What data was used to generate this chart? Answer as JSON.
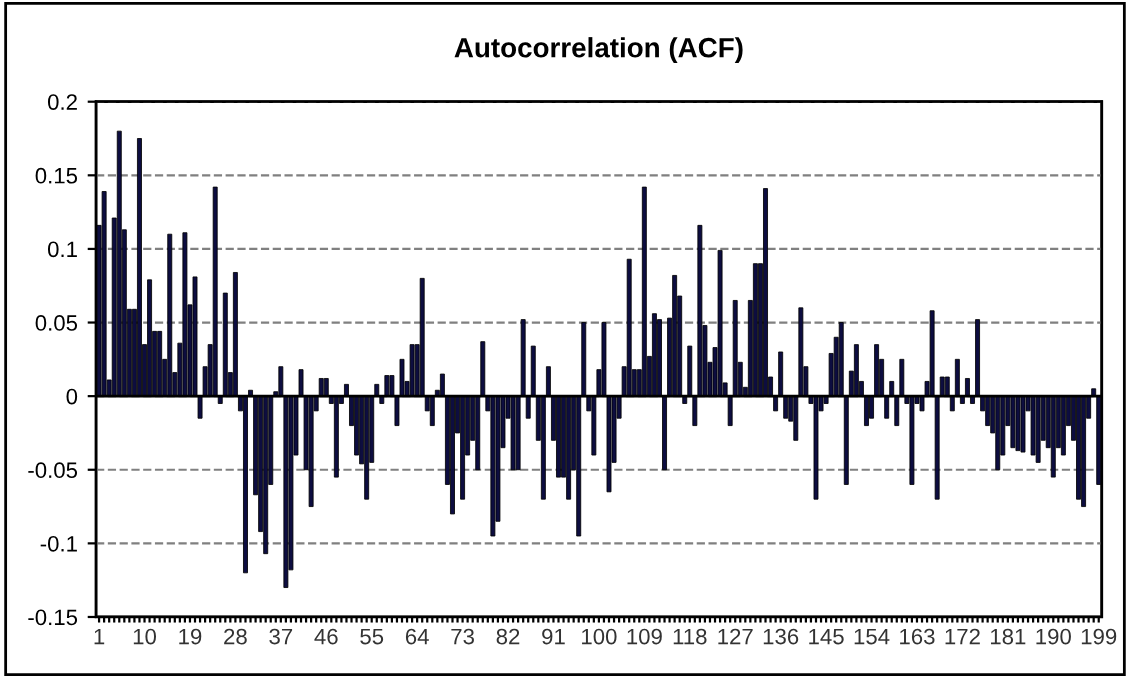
{
  "chart_data": {
    "type": "bar",
    "title": "Autocorrelation (ACF)",
    "categories": [
      "1",
      null,
      null,
      null,
      null,
      null,
      null,
      null,
      null,
      "10",
      null,
      null,
      null,
      null,
      null,
      null,
      null,
      null,
      "19",
      null,
      null,
      null,
      null,
      null,
      null,
      null,
      null,
      "28",
      null,
      null,
      null,
      null,
      null,
      null,
      null,
      null,
      "37",
      null,
      null,
      null,
      null,
      null,
      null,
      null,
      null,
      "46",
      null,
      null,
      null,
      null,
      null,
      null,
      null,
      null,
      "55",
      null,
      null,
      null,
      null,
      null,
      null,
      null,
      null,
      "64",
      null,
      null,
      null,
      null,
      null,
      null,
      null,
      null,
      "73",
      null,
      null,
      null,
      null,
      null,
      null,
      null,
      null,
      "82",
      null,
      null,
      null,
      null,
      null,
      null,
      null,
      null,
      "91",
      null,
      null,
      null,
      null,
      null,
      null,
      null,
      null,
      "100",
      null,
      null,
      null,
      null,
      null,
      null,
      null,
      null,
      "109",
      null,
      null,
      null,
      null,
      null,
      null,
      null,
      null,
      "118",
      null,
      null,
      null,
      null,
      null,
      null,
      null,
      null,
      "127",
      null,
      null,
      null,
      null,
      null,
      null,
      null,
      null,
      "136",
      null,
      null,
      null,
      null,
      null,
      null,
      null,
      null,
      "145",
      null,
      null,
      null,
      null,
      null,
      null,
      null,
      null,
      "154",
      null,
      null,
      null,
      null,
      null,
      null,
      null,
      null,
      "163",
      null,
      null,
      null,
      null,
      null,
      null,
      null,
      null,
      "172",
      null,
      null,
      null,
      null,
      null,
      null,
      null,
      null,
      "181",
      null,
      null,
      null,
      null,
      null,
      null,
      null,
      null,
      "190",
      null,
      null,
      null,
      null,
      null,
      null,
      null,
      null,
      "199"
    ],
    "values": [
      0.116,
      0.139,
      0.011,
      0.121,
      0.18,
      0.113,
      0.059,
      0.059,
      0.175,
      0.035,
      0.079,
      0.044,
      0.044,
      0.025,
      0.11,
      0.016,
      0.036,
      0.111,
      0.062,
      0.081,
      -0.015,
      0.02,
      0.035,
      0.142,
      -0.005,
      0.07,
      0.016,
      0.084,
      -0.01,
      -0.12,
      0.004,
      -0.067,
      -0.092,
      -0.107,
      -0.06,
      0.003,
      0.02,
      -0.13,
      -0.118,
      -0.04,
      0.018,
      -0.05,
      -0.075,
      -0.01,
      0.012,
      0.012,
      -0.005,
      -0.055,
      -0.005,
      0.008,
      -0.02,
      -0.04,
      -0.046,
      -0.07,
      -0.045,
      0.008,
      -0.005,
      0.014,
      0.014,
      -0.02,
      0.025,
      0.01,
      0.035,
      0.035,
      0.08,
      -0.01,
      -0.02,
      0.004,
      0.015,
      -0.06,
      -0.08,
      -0.025,
      -0.07,
      -0.04,
      -0.03,
      -0.05,
      0.037,
      -0.01,
      -0.095,
      -0.085,
      -0.035,
      -0.015,
      -0.05,
      -0.05,
      0.052,
      -0.015,
      0.034,
      -0.03,
      -0.07,
      0.02,
      -0.03,
      -0.055,
      -0.055,
      -0.07,
      -0.05,
      -0.095,
      0.05,
      -0.01,
      -0.04,
      0.018,
      0.05,
      -0.065,
      -0.045,
      -0.015,
      0.02,
      0.093,
      0.018,
      0.018,
      0.142,
      0.027,
      0.056,
      0.052,
      -0.05,
      0.053,
      0.082,
      0.068,
      -0.005,
      0.034,
      -0.02,
      0.116,
      0.048,
      0.023,
      0.033,
      0.099,
      0.009,
      -0.02,
      0.065,
      0.023,
      0.006,
      0.065,
      0.09,
      0.09,
      0.141,
      0.013,
      -0.01,
      0.03,
      -0.015,
      -0.017,
      -0.03,
      0.06,
      0.02,
      -0.005,
      -0.07,
      -0.01,
      -0.005,
      0.029,
      0.04,
      0.05,
      -0.06,
      0.017,
      0.035,
      0.01,
      -0.02,
      -0.015,
      0.035,
      0.025,
      -0.015,
      0.01,
      -0.02,
      0.025,
      -0.005,
      -0.06,
      -0.005,
      -0.01,
      0.01,
      0.058,
      -0.07,
      0.013,
      0.013,
      -0.01,
      0.025,
      -0.005,
      0.012,
      -0.005,
      0.052,
      -0.01,
      -0.02,
      -0.025,
      -0.05,
      -0.04,
      -0.02,
      -0.035,
      -0.037,
      -0.038,
      -0.01,
      -0.04,
      -0.045,
      -0.03,
      -0.035,
      -0.055,
      -0.035,
      -0.04,
      -0.02,
      -0.03,
      -0.07,
      -0.075,
      -0.015,
      0.005,
      -0.06
    ],
    "color": "#0d0d40",
    "ylim": [
      -0.15,
      0.2
    ],
    "yticks": [
      -0.15,
      -0.1,
      -0.05,
      0,
      0.05,
      0.1,
      0.15,
      0.2
    ],
    "grid": "y",
    "line_style": "dashed",
    "ref_lines": [
      {
        "axis": "y",
        "value": 0,
        "color": "#000000"
      }
    ]
  }
}
